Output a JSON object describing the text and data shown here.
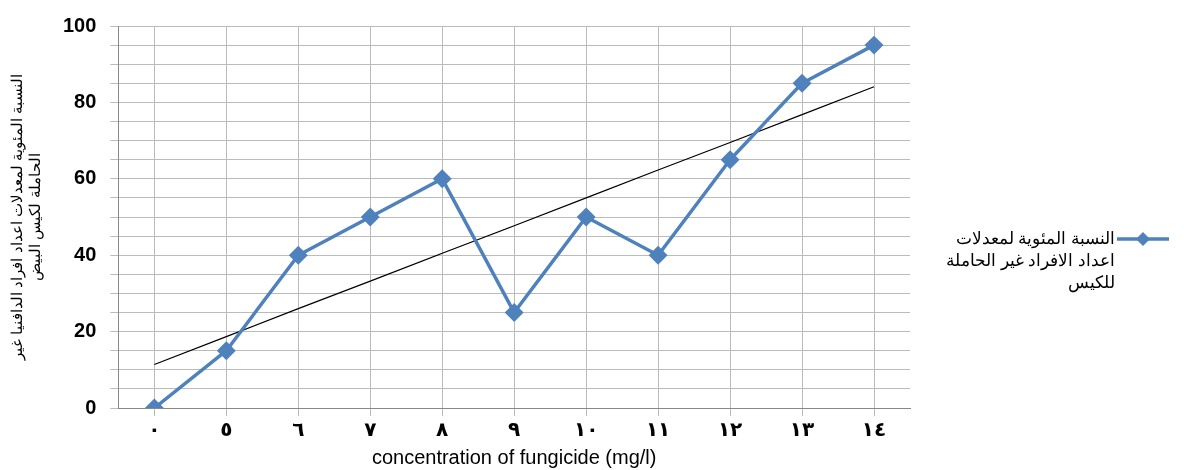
{
  "chart_data": {
    "type": "line",
    "xlabel": "concentration of fungicide (mg/l)",
    "ylabel": "النسبة المئوية لمعدلات اعداد افراد الدافنيا غير الحاملة لكيس البيض",
    "categories": [
      "٠",
      "٥",
      "٦",
      "٧",
      "٨",
      "٩",
      "١٠",
      "١١",
      "١٢",
      "١٣",
      "١٤"
    ],
    "series": [
      {
        "name": "النسبة المئوية لمعدلات اعداد الافراد غير الحاملة للكيس",
        "color": "#4f81bd",
        "values": [
          0,
          15,
          40,
          50,
          60,
          25,
          50,
          40,
          65,
          85,
          95
        ],
        "marker": "diamond"
      },
      {
        "color": "#000000",
        "values": [
          11.4,
          18.7,
          26.0,
          33.2,
          40.5,
          47.7,
          55.0,
          62.3,
          69.5,
          76.8,
          84.1
        ],
        "marker": "none"
      }
    ],
    "ylim": [
      0,
      100
    ],
    "yticks": [
      0,
      {
        "value": 5,
        "label": null
      },
      20,
      {
        "value": 15,
        "label": null
      },
      40,
      60,
      80,
      100,
      {
        "value": 10,
        "label": null
      },
      {
        "value": 25,
        "label": null
      },
      {
        "value": 30,
        "label": null
      },
      {
        "value": 35,
        "label": null
      },
      {
        "value": 45,
        "label": null
      },
      {
        "value": 50,
        "label": null
      },
      {
        "value": 55,
        "label": null
      },
      {
        "value": 65,
        "label": null
      },
      {
        "value": 70,
        "label": null
      },
      {
        "value": 75,
        "label": null
      },
      {
        "value": 85,
        "label": null
      },
      {
        "value": 90,
        "label": null
      },
      {
        "value": 95,
        "label": null
      }
    ],
    "grid": true,
    "legend": "right"
  }
}
